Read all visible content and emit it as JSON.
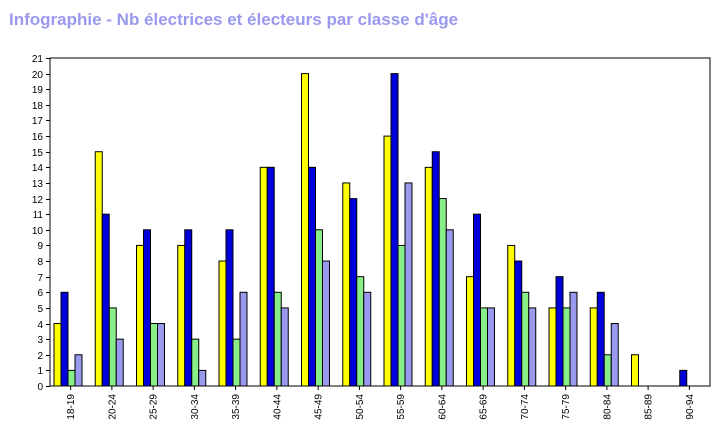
{
  "chart_data": {
    "type": "bar",
    "title": "Infographie - Nb électrices et électeurs par classe d'âge",
    "categories": [
      "18-19",
      "20-24",
      "25-29",
      "30-34",
      "35-39",
      "40-44",
      "45-49",
      "50-54",
      "55-59",
      "60-64",
      "65-69",
      "70-74",
      "75-79",
      "80-84",
      "85-89",
      "90-94"
    ],
    "series": [
      {
        "color": "#ffff00",
        "values": [
          4,
          15,
          9,
          9,
          8,
          14,
          20,
          13,
          16,
          14,
          7,
          9,
          5,
          5,
          2,
          0
        ]
      },
      {
        "color": "#0000dd",
        "values": [
          6,
          11,
          10,
          10,
          10,
          14,
          14,
          12,
          20,
          15,
          11,
          8,
          7,
          6,
          0,
          1
        ]
      },
      {
        "color": "#88ee88",
        "values": [
          1,
          5,
          4,
          3,
          3,
          6,
          10,
          7,
          9,
          12,
          5,
          6,
          5,
          2,
          0,
          0
        ]
      },
      {
        "color": "#9999ee",
        "values": [
          2,
          3,
          4,
          1,
          6,
          5,
          8,
          6,
          13,
          10,
          5,
          5,
          6,
          4,
          0,
          0
        ]
      }
    ],
    "ylim": [
      0,
      21
    ],
    "yticks": [
      "0",
      "1",
      "2",
      "3",
      "4",
      "5",
      "6",
      "7",
      "8",
      "9",
      "10",
      "11",
      "12",
      "13",
      "14",
      "15",
      "16",
      "17",
      "18",
      "19",
      "20",
      "21"
    ],
    "xlabel": "",
    "ylabel": "",
    "grid": false,
    "legend": "none"
  }
}
